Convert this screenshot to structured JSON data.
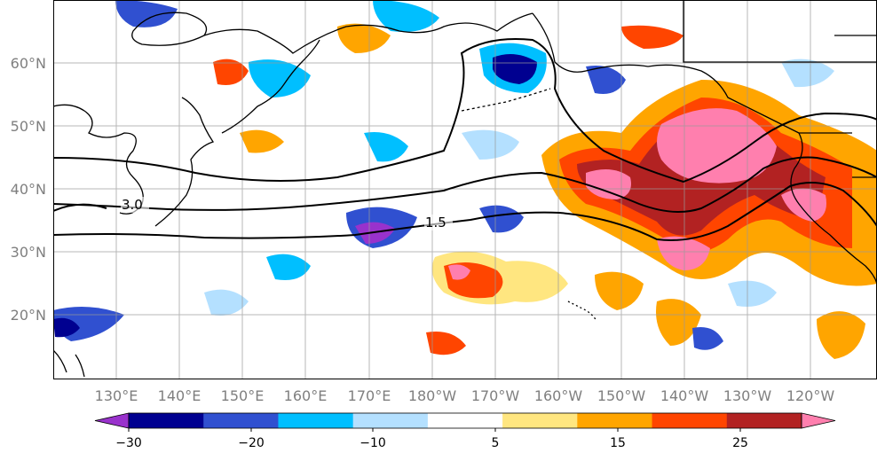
{
  "map": {
    "lat_ticks": [
      "60°N",
      "50°N",
      "40°N",
      "30°N",
      "20°N"
    ],
    "lon_ticks": [
      "130°E",
      "140°E",
      "150°E",
      "160°E",
      "170°E",
      "180°W",
      "170°W",
      "160°W",
      "150°W",
      "140°W",
      "130°W",
      "120°W"
    ],
    "contour_labels": [
      "3.0",
      "1.5"
    ]
  },
  "colorbar": {
    "tick_labels": [
      "−30",
      "−20",
      "−10",
      "5",
      "15",
      "25"
    ],
    "colors": [
      "#9932cc",
      "#000090",
      "#3050d0",
      "#00bfff",
      "#b4e0ff",
      "#ffffff",
      "#ffe680",
      "#ffa500",
      "#ff4500",
      "#b22222",
      "#ff7fae"
    ]
  }
}
